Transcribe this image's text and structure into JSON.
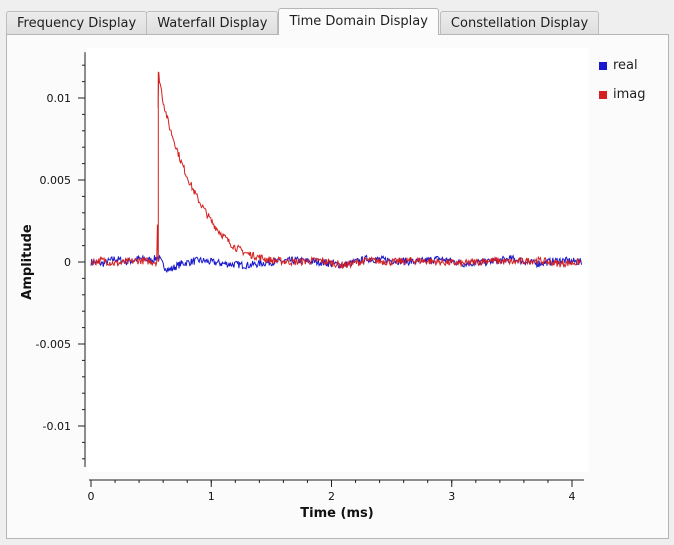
{
  "tabs": [
    {
      "label": "Frequency Display",
      "active": false
    },
    {
      "label": "Waterfall Display",
      "active": false
    },
    {
      "label": "Time Domain Display",
      "active": true
    },
    {
      "label": "Constellation Display",
      "active": false
    }
  ],
  "chart_data": {
    "type": "line",
    "title": "",
    "xlabel": "Time (ms)",
    "ylabel": "Amplitude",
    "xlim": [
      0,
      4.1
    ],
    "ylim": [
      -0.0125,
      0.0128
    ],
    "x_ticks": [
      {
        "value": 0,
        "label": "0"
      },
      {
        "value": 1,
        "label": "1"
      },
      {
        "value": 2,
        "label": "2"
      },
      {
        "value": 3,
        "label": "3"
      },
      {
        "value": 4,
        "label": "4"
      }
    ],
    "y_ticks": [
      {
        "value": 0.01,
        "label": "0.01"
      },
      {
        "value": 0.005,
        "label": "0.005"
      },
      {
        "value": 0,
        "label": "0"
      },
      {
        "value": -0.005,
        "label": "-0.005"
      },
      {
        "value": -0.01,
        "label": "-0.01"
      }
    ],
    "grid": false,
    "legend_position": "right",
    "series": [
      {
        "name": "real",
        "color": "#1818cc",
        "points": [
          [
            0.0,
            0.0
          ],
          [
            0.1,
            -0.0001
          ],
          [
            0.2,
            0.0002
          ],
          [
            0.3,
            0.0
          ],
          [
            0.4,
            0.0002
          ],
          [
            0.5,
            0.0001
          ],
          [
            0.56,
            0.0003
          ],
          [
            0.6,
            -0.0002
          ],
          [
            0.65,
            -0.0005
          ],
          [
            0.75,
            -0.0001
          ],
          [
            0.9,
            0.0001
          ],
          [
            1.1,
            -0.0001
          ],
          [
            1.3,
            -0.0002
          ],
          [
            1.5,
            0.0
          ],
          [
            1.7,
            0.0001
          ],
          [
            1.9,
            0.0
          ],
          [
            2.1,
            -0.0002
          ],
          [
            2.3,
            0.0002
          ],
          [
            2.5,
            0.0001
          ],
          [
            2.7,
            0.0
          ],
          [
            2.9,
            0.0002
          ],
          [
            3.1,
            -0.0001
          ],
          [
            3.3,
            0.0
          ],
          [
            3.5,
            0.0002
          ],
          [
            3.7,
            -0.0001
          ],
          [
            3.9,
            0.0001
          ],
          [
            4.08,
            0.0
          ]
        ]
      },
      {
        "name": "imag",
        "color": "#d42020",
        "points": [
          [
            0.0,
            0.0
          ],
          [
            0.1,
            0.0001
          ],
          [
            0.2,
            -0.0001
          ],
          [
            0.3,
            0.0
          ],
          [
            0.4,
            0.0001
          ],
          [
            0.55,
            0.0
          ],
          [
            0.56,
            0.0116
          ],
          [
            0.6,
            0.0098
          ],
          [
            0.65,
            0.0083
          ],
          [
            0.7,
            0.0072
          ],
          [
            0.75,
            0.0061
          ],
          [
            0.8,
            0.0052
          ],
          [
            0.85,
            0.0044
          ],
          [
            0.9,
            0.0037
          ],
          [
            0.95,
            0.0031
          ],
          [
            1.0,
            0.0025
          ],
          [
            1.05,
            0.002
          ],
          [
            1.1,
            0.0016
          ],
          [
            1.15,
            0.0012
          ],
          [
            1.2,
            0.0009
          ],
          [
            1.3,
            0.0005
          ],
          [
            1.4,
            0.0003
          ],
          [
            1.5,
            0.0001
          ],
          [
            1.7,
            0.0
          ],
          [
            1.9,
            0.0001
          ],
          [
            2.1,
            -0.0002
          ],
          [
            2.3,
            0.0001
          ],
          [
            2.5,
            0.0
          ],
          [
            2.7,
            0.0001
          ],
          [
            2.9,
            0.0
          ],
          [
            3.1,
            -0.0001
          ],
          [
            3.3,
            0.0001
          ],
          [
            3.5,
            0.0
          ],
          [
            3.7,
            0.0001
          ],
          [
            3.9,
            -0.0001
          ],
          [
            4.08,
            0.0
          ]
        ]
      }
    ]
  }
}
